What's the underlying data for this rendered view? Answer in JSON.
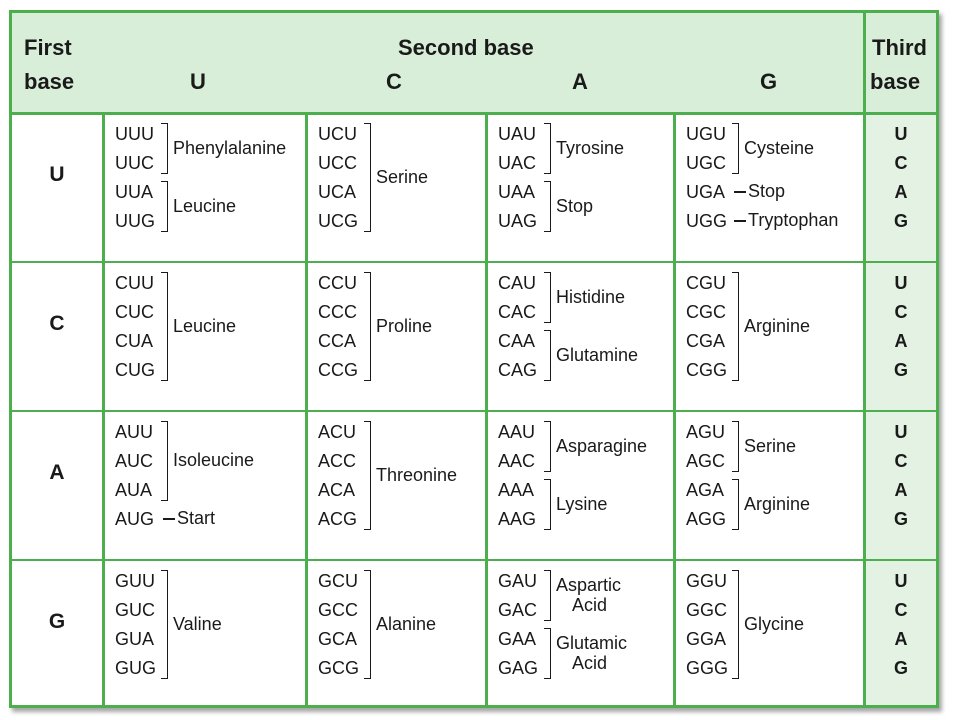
{
  "header": {
    "first_base_line1": "First",
    "first_base_line2": "base",
    "second_base": "Second base",
    "second_u": "U",
    "second_c": "C",
    "second_a": "A",
    "second_g": "G",
    "third_base_line1": "Third",
    "third_base_line2": "base"
  },
  "first_bases": [
    "U",
    "C",
    "A",
    "G"
  ],
  "third_bases": [
    "U",
    "C",
    "A",
    "G"
  ],
  "rows": [
    {
      "cells": [
        {
          "codons": [
            "UUU",
            "UUC",
            "UUA",
            "UUG"
          ],
          "groups": [
            {
              "type": "bracket",
              "from": 0,
              "to": 1,
              "labels": [
                "Phenylalanine"
              ]
            },
            {
              "type": "bracket",
              "from": 2,
              "to": 3,
              "labels": [
                "Leucine"
              ]
            }
          ]
        },
        {
          "codons": [
            "UCU",
            "UCC",
            "UCA",
            "UCG"
          ],
          "groups": [
            {
              "type": "bracket",
              "from": 0,
              "to": 3,
              "labels": [
                "Serine"
              ]
            }
          ]
        },
        {
          "codons": [
            "UAU",
            "UAC",
            "UAA",
            "UAG"
          ],
          "groups": [
            {
              "type": "bracket",
              "from": 0,
              "to": 1,
              "labels": [
                "Tyrosine"
              ]
            },
            {
              "type": "bracket",
              "from": 2,
              "to": 3,
              "labels": [
                "Stop"
              ]
            }
          ]
        },
        {
          "codons": [
            "UGU",
            "UGC",
            "UGA",
            "UGG"
          ],
          "groups": [
            {
              "type": "bracket",
              "from": 0,
              "to": 1,
              "labels": [
                "Cysteine"
              ]
            },
            {
              "type": "dash",
              "from": 2,
              "to": 2,
              "labels": [
                "Stop"
              ]
            },
            {
              "type": "dash",
              "from": 3,
              "to": 3,
              "labels": [
                "Tryptophan"
              ]
            }
          ]
        }
      ]
    },
    {
      "cells": [
        {
          "codons": [
            "CUU",
            "CUC",
            "CUA",
            "CUG"
          ],
          "groups": [
            {
              "type": "bracket",
              "from": 0,
              "to": 3,
              "labels": [
                "Leucine"
              ]
            }
          ]
        },
        {
          "codons": [
            "CCU",
            "CCC",
            "CCA",
            "CCG"
          ],
          "groups": [
            {
              "type": "bracket",
              "from": 0,
              "to": 3,
              "labels": [
                "Proline"
              ]
            }
          ]
        },
        {
          "codons": [
            "CAU",
            "CAC",
            "CAA",
            "CAG"
          ],
          "groups": [
            {
              "type": "bracket",
              "from": 0,
              "to": 1,
              "labels": [
                "Histidine"
              ]
            },
            {
              "type": "bracket",
              "from": 2,
              "to": 3,
              "labels": [
                "Glutamine"
              ]
            }
          ]
        },
        {
          "codons": [
            "CGU",
            "CGC",
            "CGA",
            "CGG"
          ],
          "groups": [
            {
              "type": "bracket",
              "from": 0,
              "to": 3,
              "labels": [
                "Arginine"
              ]
            }
          ]
        }
      ]
    },
    {
      "cells": [
        {
          "codons": [
            "AUU",
            "AUC",
            "AUA",
            "AUG"
          ],
          "groups": [
            {
              "type": "bracket",
              "from": 0,
              "to": 2,
              "labels": [
                "Isoleucine"
              ]
            },
            {
              "type": "dash",
              "from": 3,
              "to": 3,
              "labels": [
                "Start"
              ]
            }
          ]
        },
        {
          "codons": [
            "ACU",
            "ACC",
            "ACA",
            "ACG"
          ],
          "groups": [
            {
              "type": "bracket",
              "from": 0,
              "to": 3,
              "labels": [
                "Threonine"
              ]
            }
          ]
        },
        {
          "codons": [
            "AAU",
            "AAC",
            "AAA",
            "AAG"
          ],
          "groups": [
            {
              "type": "bracket",
              "from": 0,
              "to": 1,
              "labels": [
                "Asparagine"
              ]
            },
            {
              "type": "bracket",
              "from": 2,
              "to": 3,
              "labels": [
                "Lysine"
              ]
            }
          ]
        },
        {
          "codons": [
            "AGU",
            "AGC",
            "AGA",
            "AGG"
          ],
          "groups": [
            {
              "type": "bracket",
              "from": 0,
              "to": 1,
              "labels": [
                "Serine"
              ]
            },
            {
              "type": "bracket",
              "from": 2,
              "to": 3,
              "labels": [
                "Arginine"
              ]
            }
          ]
        }
      ]
    },
    {
      "cells": [
        {
          "codons": [
            "GUU",
            "GUC",
            "GUA",
            "GUG"
          ],
          "groups": [
            {
              "type": "bracket",
              "from": 0,
              "to": 3,
              "labels": [
                "Valine"
              ]
            }
          ]
        },
        {
          "codons": [
            "GCU",
            "GCC",
            "GCA",
            "GCG"
          ],
          "groups": [
            {
              "type": "bracket",
              "from": 0,
              "to": 3,
              "labels": [
                "Alanine"
              ]
            }
          ]
        },
        {
          "codons": [
            "GAU",
            "GAC",
            "GAA",
            "GAG"
          ],
          "groups": [
            {
              "type": "bracket",
              "from": 0,
              "to": 1,
              "labels": [
                "Aspartic",
                "Acid"
              ]
            },
            {
              "type": "bracket",
              "from": 2,
              "to": 3,
              "labels": [
                "Glutamic",
                "Acid"
              ]
            }
          ]
        },
        {
          "codons": [
            "GGU",
            "GGC",
            "GGA",
            "GGG"
          ],
          "groups": [
            {
              "type": "bracket",
              "from": 0,
              "to": 3,
              "labels": [
                "Glycine"
              ]
            }
          ]
        }
      ]
    }
  ],
  "colors": {
    "border": "#4cae4c",
    "header_fill": "#d9eed8",
    "third_fill": "#e4f2e3",
    "text": "#1a1a1a"
  }
}
